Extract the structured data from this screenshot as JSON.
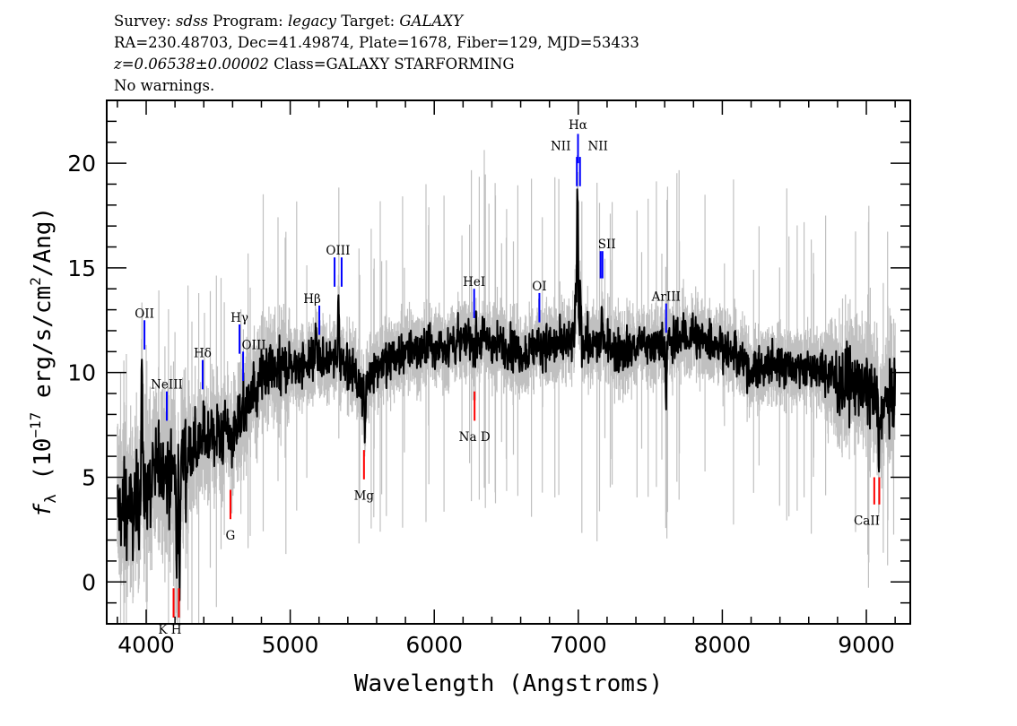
{
  "header": {
    "survey_label": "Survey:",
    "survey": "sdss",
    "program_label": "Program:",
    "program": "legacy",
    "target_label": "Target:",
    "target": "GALAXY",
    "line2": "RA=230.48703, Dec=41.49874, Plate=1678, Fiber=129, MJD=53433",
    "redshift": "z=0.06538±0.00002",
    "class": "Class=GALAXY STARFORMING",
    "warnings": "No warnings."
  },
  "chart_data": {
    "type": "line",
    "title": "",
    "xlabel": "Wavelength (Angstroms)",
    "ylabel": "fλ (10⁻¹⁷ erg/s/cm²/Ang)",
    "ylabel_parts": {
      "f": "f",
      "sub": "λ",
      "pre": " (10",
      "exp": "−17",
      "mid": " erg/s/cm",
      "exp2": "2",
      "post": "/Ang)"
    },
    "xlim": [
      3726,
      9305
    ],
    "ylim": [
      -2,
      23
    ],
    "xticks": [
      4000,
      5000,
      6000,
      7000,
      8000,
      9000
    ],
    "xtick_labels": [
      "4000",
      "5000",
      "6000",
      "7000",
      "8000",
      "9000"
    ],
    "yticks": [
      0,
      5,
      10,
      15,
      20
    ],
    "ytick_labels": [
      "0",
      "5",
      "10",
      "15",
      "20"
    ],
    "grid": false,
    "colors": {
      "flux": "#000000",
      "error": "#c0c0c0",
      "emission": "#0000ff",
      "absorption": "#ff0000"
    },
    "continuum": [
      [
        3800,
        3.5
      ],
      [
        3900,
        3.4
      ],
      [
        4000,
        4.6
      ],
      [
        4100,
        5.5
      ],
      [
        4200,
        5.3
      ],
      [
        4300,
        6.3
      ],
      [
        4400,
        6.8
      ],
      [
        4500,
        7.0
      ],
      [
        4600,
        7.1
      ],
      [
        4700,
        8.5
      ],
      [
        4800,
        9.5
      ],
      [
        4900,
        10.0
      ],
      [
        5000,
        10.3
      ],
      [
        5200,
        10.6
      ],
      [
        5400,
        10.5
      ],
      [
        5500,
        9.2
      ],
      [
        5600,
        10.3
      ],
      [
        5800,
        11.0
      ],
      [
        6000,
        11.2
      ],
      [
        6200,
        11.5
      ],
      [
        6400,
        11.5
      ],
      [
        6600,
        11.0
      ],
      [
        6800,
        11.3
      ],
      [
        7000,
        11.5
      ],
      [
        7200,
        11.1
      ],
      [
        7400,
        11.2
      ],
      [
        7600,
        11.4
      ],
      [
        7800,
        11.8
      ],
      [
        8000,
        11.3
      ],
      [
        8200,
        10.1
      ],
      [
        8400,
        10.4
      ],
      [
        8600,
        10.2
      ],
      [
        8800,
        9.7
      ],
      [
        9000,
        9.3
      ],
      [
        9100,
        8.3
      ],
      [
        9200,
        9.0
      ]
    ],
    "features": [
      [
        3970,
        10.5
      ],
      [
        4212,
        -0.4
      ],
      [
        4232,
        0.3
      ],
      [
        5180,
        12.2
      ],
      [
        5335,
        13.5
      ],
      [
        5520,
        7.0
      ],
      [
        6995,
        19.2
      ],
      [
        6980,
        13.5
      ],
      [
        7015,
        14.0
      ],
      [
        7163,
        12.8
      ],
      [
        7175,
        11.8
      ],
      [
        7610,
        9.0
      ],
      [
        9088,
        5.6
      ]
    ],
    "lines": [
      {
        "label": "OII",
        "w": 3988,
        "y": [
          12.5,
          11.1
        ],
        "ly": 12.8,
        "color": "emission"
      },
      {
        "label": "NeIII",
        "w": 4143,
        "y": [
          9.1,
          7.7
        ],
        "ly": 9.4,
        "color": "emission"
      },
      {
        "label": "Hδ",
        "w": 4392,
        "y": [
          10.6,
          9.2
        ],
        "ly": 10.9,
        "color": "emission"
      },
      {
        "label": "Hγ",
        "w": 4648,
        "y": [
          12.3,
          10.9
        ],
        "ly": 12.6,
        "color": "emission"
      },
      {
        "label": "OIII",
        "w": 4673,
        "y": [
          11.0,
          9.6
        ],
        "ly": 11.3,
        "color": "emission",
        "dx": 12
      },
      {
        "label": "Hβ",
        "w": 5202,
        "y": [
          13.2,
          11.8
        ],
        "ly": 13.5,
        "color": "emission",
        "dx": -8
      },
      {
        "label": "",
        "w": 5308,
        "y": [
          15.5,
          14.1
        ],
        "color": "emission"
      },
      {
        "label": "OIII",
        "w": 5357,
        "y": [
          15.5,
          14.1
        ],
        "ly": 15.8,
        "color": "emission",
        "dx": -4
      },
      {
        "label": "HeI",
        "w": 6277,
        "y": [
          14.0,
          12.6
        ],
        "ly": 14.3,
        "color": "emission"
      },
      {
        "label": "OI",
        "w": 6730,
        "y": [
          13.8,
          12.4
        ],
        "ly": 14.1,
        "color": "emission"
      },
      {
        "label": "NII",
        "w": 6990,
        "y": [
          20.3,
          18.9
        ],
        "ly": 20.8,
        "color": "emission",
        "dx": -18
      },
      {
        "label": "Hα",
        "w": 6998,
        "y": [
          21.4,
          20.0
        ],
        "ly": 21.8,
        "color": "emission"
      },
      {
        "label": "NII",
        "w": 7012,
        "y": [
          20.3,
          18.9
        ],
        "ly": 20.8,
        "color": "emission",
        "dx": 20
      },
      {
        "label": "SII",
        "w": 7155,
        "y": [
          15.8,
          14.5
        ],
        "ly": 16.1,
        "color": "emission",
        "dx": 7
      },
      {
        "label": "",
        "w": 7168,
        "y": [
          15.8,
          14.5
        ],
        "color": "emission"
      },
      {
        "label": "ArIII",
        "w": 7610,
        "y": [
          13.3,
          11.9
        ],
        "ly": 13.6,
        "color": "emission"
      },
      {
        "label": "",
        "w": 4190,
        "y": [
          -0.3,
          -1.7
        ],
        "color": "absorption"
      },
      {
        "label": "K H",
        "w": 4227,
        "y": [
          -0.3,
          -1.7
        ],
        "ly": -2.3,
        "color": "absorption",
        "dx": -10
      },
      {
        "label": "G",
        "w": 4585,
        "y": [
          4.4,
          3.0
        ],
        "ly": 2.2,
        "color": "absorption"
      },
      {
        "label": "Mg",
        "w": 5512,
        "y": [
          6.3,
          4.9
        ],
        "ly": 4.1,
        "color": "absorption"
      },
      {
        "label": "Na D",
        "w": 6280,
        "y": [
          9.1,
          7.7
        ],
        "ly": 6.9,
        "color": "absorption"
      },
      {
        "label": "",
        "w": 9055,
        "y": [
          5.0,
          3.7
        ],
        "color": "absorption"
      },
      {
        "label": "CaII",
        "w": 9090,
        "y": [
          5.0,
          3.7
        ],
        "ly": 2.9,
        "color": "absorption",
        "dx": -14
      }
    ]
  }
}
